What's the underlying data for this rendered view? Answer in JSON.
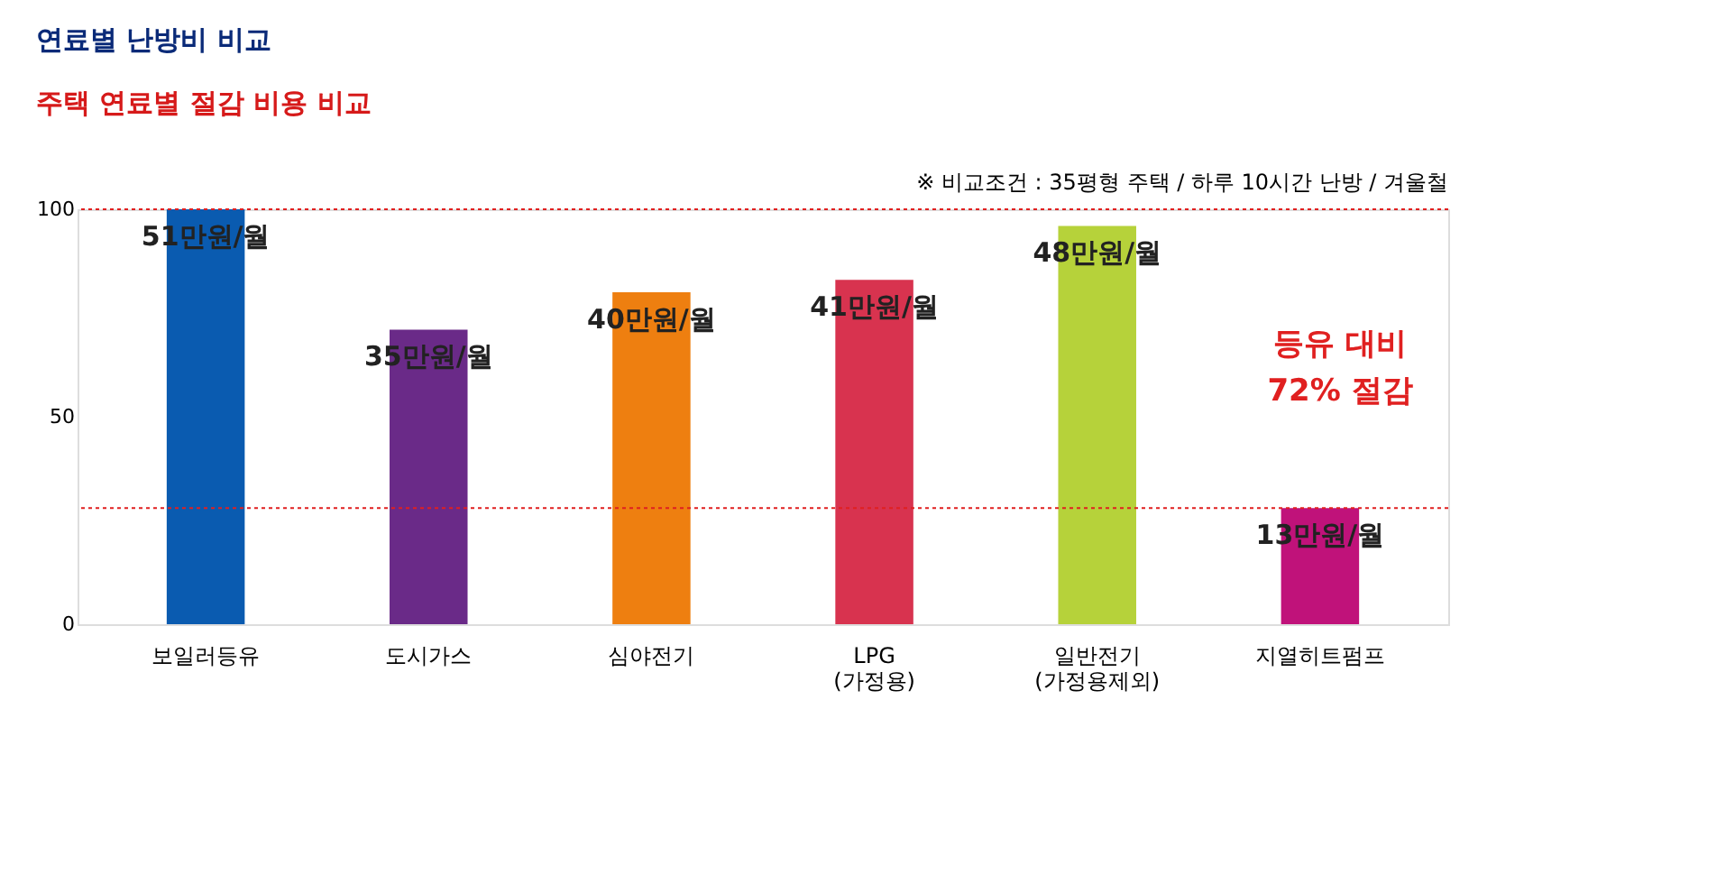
{
  "chart_data": {
    "type": "bar",
    "title": "연료별 난방비 비교",
    "subtitle": "주택 연료별 절감 비용 비교",
    "categories": [
      "보일러등유",
      "도시가스",
      "심야전기",
      "LPG\n(가정용)",
      "일반전기\n(가정용제외)",
      "지열히트펌프"
    ],
    "values": [
      100,
      71,
      80,
      83,
      96,
      28
    ],
    "colors": [
      "#0a5bb0",
      "#6a2a88",
      "#ee7f10",
      "#d8334f",
      "#b6d23a",
      "#c0127a"
    ],
    "ylim": [
      0,
      100
    ],
    "yticks": [
      0,
      50,
      100
    ],
    "grid": false,
    "ref_lines": [
      {
        "axis": "y",
        "value": 100,
        "color": "#e02020",
        "line_style": "dotted"
      },
      {
        "axis": "y",
        "value": 28,
        "color": "#e02020",
        "line_style": "dotted"
      }
    ],
    "annotations": [
      "※ 비교조건 : 35평형 주택 / 하루 10시간 난방 / 겨울철",
      "등유 대비\n72% 절감",
      "51만원/월",
      "35만원/월",
      "40만원/월",
      "41만원/월",
      "48만원/월",
      "13만원/월"
    ]
  }
}
